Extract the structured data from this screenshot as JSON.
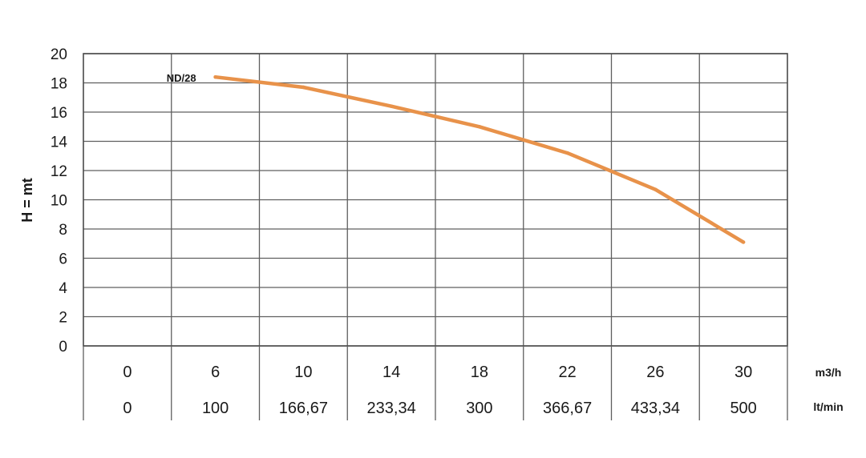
{
  "chart_data": {
    "type": "line",
    "ylabel": "H = mt",
    "ylim": [
      0,
      20
    ],
    "yticks": [
      0,
      2,
      4,
      6,
      8,
      10,
      12,
      14,
      16,
      18,
      20
    ],
    "grid": true,
    "x_columns": {
      "m3h": [
        "0",
        "6",
        "10",
        "14",
        "18",
        "22",
        "26",
        "30"
      ],
      "ltmin": [
        "0",
        "100",
        "166,67",
        "233,34",
        "300",
        "366,67",
        "433,34",
        "500"
      ]
    },
    "x_units": {
      "m3h": "m3/h",
      "ltmin": "lt/min"
    },
    "series": [
      {
        "name": "ND/28",
        "color": "#E8924A",
        "x": [
          6,
          10,
          14,
          18,
          22,
          26,
          30
        ],
        "y": [
          18.4,
          17.7,
          16.4,
          15.0,
          13.2,
          10.7,
          7.1
        ]
      }
    ]
  }
}
